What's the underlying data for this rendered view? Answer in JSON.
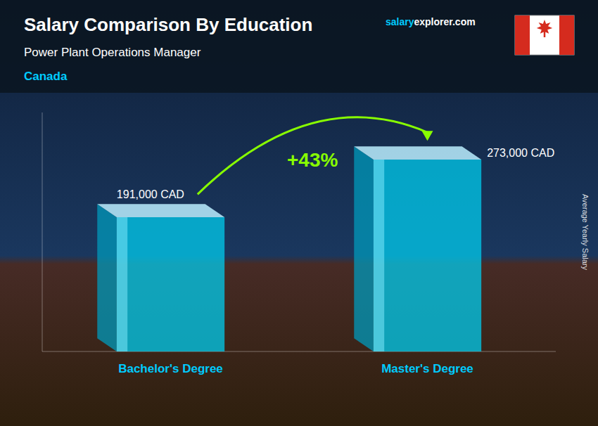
{
  "chart_data": {
    "type": "bar",
    "title": "Salary Comparison By Education",
    "subtitle": "Power Plant Operations Manager",
    "ylabel": "Average Yearly Salary",
    "annotations": [
      "Canada",
      "salary",
      "explorer.com",
      "+43%"
    ],
    "categories": [
      "Bachelor's Degree",
      "Master's Degree"
    ],
    "values": [
      191000,
      273000
    ],
    "value_labels": [
      "191,000 CAD",
      "273,000 CAD"
    ],
    "color": "#00CCEE",
    "ylim": [
      0,
      340000
    ],
    "data_labels": true,
    "tick_labels": false,
    "grid": false
  }
}
